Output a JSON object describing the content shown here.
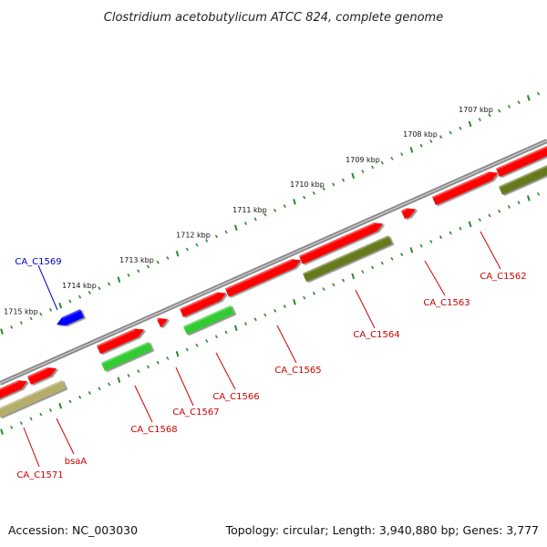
{
  "title": "Clostridium acetobutylicum ATCC 824, complete genome",
  "footer": {
    "accession": "Accession: NC_003030",
    "summary": "Topology: circular; Length: 3,940,880 bp; Genes: 3,777"
  },
  "colors": {
    "backbone": "#7a7a7a",
    "tick_major": "#1f7a1f",
    "tick_minor": "#1f7a1f",
    "cds_forward_red": "#ff0000",
    "cds_reverse_blue": "#0000ff",
    "cog_green": "#33cc33",
    "cog_olive": "#667a1f",
    "cog_khaki": "#b5ad6a",
    "label_red": "#cc0000",
    "label_blue": "#0000cc"
  },
  "scale_labels": [
    {
      "text": "1707 kbp"
    },
    {
      "text": "1708 kbp"
    },
    {
      "text": "1709 kbp"
    },
    {
      "text": "1710 kbp"
    },
    {
      "text": "1711 kbp"
    },
    {
      "text": "1712 kbp"
    },
    {
      "text": "1713 kbp"
    },
    {
      "text": "1714 kbp"
    },
    {
      "text": "1715 kbp"
    }
  ],
  "genes": [
    {
      "label": "CA_C1562",
      "strand": "forward",
      "cog": "olive"
    },
    {
      "label": "CA_C1563",
      "strand": "forward",
      "cog": "none"
    },
    {
      "label": "CA_C1564",
      "strand": "forward",
      "cog": "olive"
    },
    {
      "label": "CA_C1565",
      "strand": "forward",
      "cog": "none"
    },
    {
      "label": "CA_C1566",
      "strand": "forward",
      "cog": "green"
    },
    {
      "label": "CA_C1567",
      "strand": "forward",
      "cog": "none"
    },
    {
      "label": "CA_C1568",
      "strand": "forward",
      "cog": "green"
    },
    {
      "label": "CA_C1569",
      "strand": "reverse",
      "cog": "none"
    },
    {
      "label": "bsaA",
      "strand": "forward",
      "cog": "khaki"
    },
    {
      "label": "CA_C1571",
      "strand": "forward",
      "cog": "khaki"
    }
  ]
}
